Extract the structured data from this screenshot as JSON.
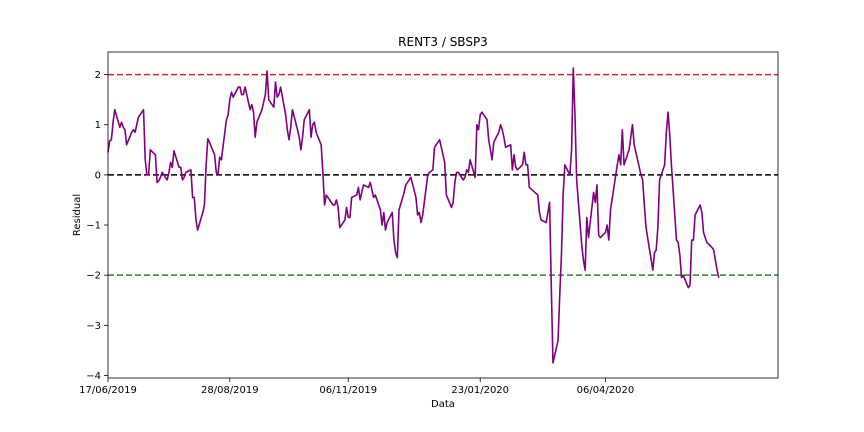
{
  "chart_data": {
    "type": "line",
    "title": "RENT3 / SBSP3",
    "xlabel": "Data",
    "ylabel": "Residual",
    "x_start": "2019-06-17",
    "x_end": "2020-07-17",
    "ylim": [
      -4.05,
      2.45
    ],
    "yticks": [
      -4,
      -3,
      -2,
      -1,
      0,
      1,
      2
    ],
    "xticks": [
      {
        "date": "2019-06-17",
        "label": "17/06/2019"
      },
      {
        "date": "2019-08-28",
        "label": "28/08/2019"
      },
      {
        "date": "2019-11-06",
        "label": "06/11/2019"
      },
      {
        "date": "2020-01-23",
        "label": "23/01/2020"
      },
      {
        "date": "2020-04-06",
        "label": "06/04/2020"
      }
    ],
    "grid": false,
    "reference_lines": [
      {
        "y": 2,
        "color": "#d62728",
        "style": "dashed"
      },
      {
        "y": 0,
        "color": "#000000",
        "style": "dashed"
      },
      {
        "y": -2,
        "color": "#2e7d32",
        "style": "dashed"
      }
    ],
    "series": [
      {
        "color": "#800080",
        "points": [
          [
            "2019-06-17",
            0.45
          ],
          [
            "2019-06-18",
            0.68
          ],
          [
            "2019-06-19",
            0.7
          ],
          [
            "2019-06-20",
            1.05
          ],
          [
            "2019-06-21",
            1.3
          ],
          [
            "2019-06-24",
            0.95
          ],
          [
            "2019-06-25",
            1.05
          ],
          [
            "2019-06-26",
            0.95
          ],
          [
            "2019-06-27",
            0.9
          ],
          [
            "2019-06-28",
            0.6
          ],
          [
            "2019-07-01",
            0.85
          ],
          [
            "2019-07-02",
            0.9
          ],
          [
            "2019-07-03",
            0.85
          ],
          [
            "2019-07-04",
            1.0
          ],
          [
            "2019-07-05",
            1.15
          ],
          [
            "2019-07-08",
            1.3
          ],
          [
            "2019-07-09",
            0.3
          ],
          [
            "2019-07-10",
            0.0
          ],
          [
            "2019-07-11",
            0.0
          ],
          [
            "2019-07-12",
            0.5
          ],
          [
            "2019-07-15",
            0.4
          ],
          [
            "2019-07-16",
            -0.15
          ],
          [
            "2019-07-17",
            -0.12
          ],
          [
            "2019-07-18",
            -0.05
          ],
          [
            "2019-07-19",
            0.05
          ],
          [
            "2019-07-22",
            -0.1
          ],
          [
            "2019-07-23",
            0.05
          ],
          [
            "2019-07-24",
            0.25
          ],
          [
            "2019-07-25",
            0.15
          ],
          [
            "2019-07-26",
            0.48
          ],
          [
            "2019-07-29",
            0.15
          ],
          [
            "2019-07-30",
            0.15
          ],
          [
            "2019-07-31",
            -0.1
          ],
          [
            "2019-08-01",
            -0.05
          ],
          [
            "2019-08-02",
            0.05
          ],
          [
            "2019-08-05",
            0.1
          ],
          [
            "2019-08-06",
            -0.45
          ],
          [
            "2019-08-07",
            -0.45
          ],
          [
            "2019-08-08",
            -0.9
          ],
          [
            "2019-08-09",
            -1.1
          ],
          [
            "2019-08-12",
            -0.75
          ],
          [
            "2019-08-13",
            -0.6
          ],
          [
            "2019-08-14",
            0.2
          ],
          [
            "2019-08-15",
            0.72
          ],
          [
            "2019-08-16",
            0.65
          ],
          [
            "2019-08-19",
            0.4
          ],
          [
            "2019-08-20",
            0.05
          ],
          [
            "2019-08-21",
            0.0
          ],
          [
            "2019-08-22",
            0.35
          ],
          [
            "2019-08-23",
            0.3
          ],
          [
            "2019-08-26",
            1.1
          ],
          [
            "2019-08-27",
            1.2
          ],
          [
            "2019-08-28",
            1.5
          ],
          [
            "2019-08-29",
            1.65
          ],
          [
            "2019-08-30",
            1.55
          ],
          [
            "2019-09-02",
            1.75
          ],
          [
            "2019-09-03",
            1.75
          ],
          [
            "2019-09-04",
            1.6
          ],
          [
            "2019-09-05",
            1.6
          ],
          [
            "2019-09-06",
            1.75
          ],
          [
            "2019-09-09",
            1.3
          ],
          [
            "2019-09-10",
            1.4
          ],
          [
            "2019-09-11",
            1.25
          ],
          [
            "2019-09-12",
            0.75
          ],
          [
            "2019-09-13",
            1.05
          ],
          [
            "2019-09-16",
            1.3
          ],
          [
            "2019-09-17",
            1.45
          ],
          [
            "2019-09-18",
            1.6
          ],
          [
            "2019-09-19",
            2.07
          ],
          [
            "2019-09-20",
            1.5
          ],
          [
            "2019-09-23",
            1.35
          ],
          [
            "2019-09-24",
            1.85
          ],
          [
            "2019-09-25",
            1.55
          ],
          [
            "2019-09-26",
            1.6
          ],
          [
            "2019-09-27",
            1.75
          ],
          [
            "2019-09-30",
            1.2
          ],
          [
            "2019-10-01",
            0.9
          ],
          [
            "2019-10-02",
            0.7
          ],
          [
            "2019-10-03",
            0.95
          ],
          [
            "2019-10-04",
            1.3
          ],
          [
            "2019-10-07",
            0.9
          ],
          [
            "2019-10-08",
            0.75
          ],
          [
            "2019-10-09",
            0.5
          ],
          [
            "2019-10-10",
            0.75
          ],
          [
            "2019-10-11",
            1.1
          ],
          [
            "2019-10-14",
            1.3
          ],
          [
            "2019-10-15",
            0.75
          ],
          [
            "2019-10-16",
            1.0
          ],
          [
            "2019-10-17",
            1.05
          ],
          [
            "2019-10-18",
            0.85
          ],
          [
            "2019-10-21",
            0.6
          ],
          [
            "2019-10-22",
            0.05
          ],
          [
            "2019-10-23",
            -0.6
          ],
          [
            "2019-10-24",
            -0.4
          ],
          [
            "2019-10-25",
            -0.45
          ],
          [
            "2019-10-28",
            -0.6
          ],
          [
            "2019-10-29",
            -0.6
          ],
          [
            "2019-10-30",
            -0.5
          ],
          [
            "2019-10-31",
            -0.65
          ],
          [
            "2019-11-01",
            -1.05
          ],
          [
            "2019-11-04",
            -0.9
          ],
          [
            "2019-11-05",
            -0.65
          ],
          [
            "2019-11-06",
            -0.85
          ],
          [
            "2019-11-07",
            -0.85
          ],
          [
            "2019-11-08",
            -0.45
          ],
          [
            "2019-11-11",
            -0.4
          ],
          [
            "2019-11-12",
            -0.25
          ],
          [
            "2019-11-13",
            -0.5
          ],
          [
            "2019-11-14",
            -0.35
          ],
          [
            "2019-11-15",
            -0.2
          ],
          [
            "2019-11-18",
            -0.25
          ],
          [
            "2019-11-19",
            -0.15
          ],
          [
            "2019-11-20",
            -0.3
          ],
          [
            "2019-11-21",
            -0.45
          ],
          [
            "2019-11-22",
            -0.4
          ],
          [
            "2019-11-25",
            -0.7
          ],
          [
            "2019-11-26",
            -1.0
          ],
          [
            "2019-11-27",
            -0.75
          ],
          [
            "2019-11-28",
            -1.1
          ],
          [
            "2019-11-29",
            -0.95
          ],
          [
            "2019-12-02",
            -0.75
          ],
          [
            "2019-12-03",
            -1.3
          ],
          [
            "2019-12-04",
            -1.55
          ],
          [
            "2019-12-05",
            -1.65
          ],
          [
            "2019-12-06",
            -0.7
          ],
          [
            "2019-12-09",
            -0.35
          ],
          [
            "2019-12-10",
            -0.2
          ],
          [
            "2019-12-11",
            -0.15
          ],
          [
            "2019-12-12",
            -0.1
          ],
          [
            "2019-12-13",
            -0.05
          ],
          [
            "2019-12-16",
            -0.45
          ],
          [
            "2019-12-17",
            -0.8
          ],
          [
            "2019-12-18",
            -0.75
          ],
          [
            "2019-12-19",
            -0.95
          ],
          [
            "2019-12-20",
            -0.8
          ],
          [
            "2019-12-23",
            0.0
          ],
          [
            "2019-12-24",
            0.05
          ],
          [
            "2019-12-26",
            0.1
          ],
          [
            "2019-12-27",
            0.55
          ],
          [
            "2019-12-30",
            0.7
          ],
          [
            "2019-12-31",
            0.55
          ],
          [
            "2020-01-02",
            0.25
          ],
          [
            "2020-01-03",
            -0.4
          ],
          [
            "2020-01-06",
            -0.65
          ],
          [
            "2020-01-07",
            -0.55
          ],
          [
            "2020-01-08",
            -0.15
          ],
          [
            "2020-01-09",
            0.05
          ],
          [
            "2020-01-10",
            0.05
          ],
          [
            "2020-01-13",
            -0.1
          ],
          [
            "2020-01-14",
            -0.05
          ],
          [
            "2020-01-15",
            0.1
          ],
          [
            "2020-01-16",
            0.05
          ],
          [
            "2020-01-17",
            0.3
          ],
          [
            "2020-01-20",
            -0.05
          ],
          [
            "2020-01-21",
            1.0
          ],
          [
            "2020-01-22",
            0.9
          ],
          [
            "2020-01-23",
            1.2
          ],
          [
            "2020-01-24",
            1.25
          ],
          [
            "2020-01-27",
            1.1
          ],
          [
            "2020-01-28",
            0.7
          ],
          [
            "2020-01-29",
            0.5
          ],
          [
            "2020-01-30",
            0.3
          ],
          [
            "2020-01-31",
            0.65
          ],
          [
            "2020-02-03",
            0.85
          ],
          [
            "2020-02-04",
            1.0
          ],
          [
            "2020-02-05",
            0.9
          ],
          [
            "2020-02-06",
            0.75
          ],
          [
            "2020-02-07",
            0.55
          ],
          [
            "2020-02-10",
            0.6
          ],
          [
            "2020-02-11",
            0.1
          ],
          [
            "2020-02-12",
            0.4
          ],
          [
            "2020-02-13",
            0.15
          ],
          [
            "2020-02-14",
            0.1
          ],
          [
            "2020-02-17",
            0.2
          ],
          [
            "2020-02-18",
            0.45
          ],
          [
            "2020-02-19",
            0.2
          ],
          [
            "2020-02-20",
            0.2
          ],
          [
            "2020-02-21",
            -0.25
          ],
          [
            "2020-02-26",
            -0.4
          ],
          [
            "2020-02-27",
            -0.75
          ],
          [
            "2020-02-28",
            -0.9
          ],
          [
            "2020-03-02",
            -0.95
          ],
          [
            "2020-03-03",
            -0.75
          ],
          [
            "2020-03-04",
            -0.55
          ],
          [
            "2020-03-05",
            -2.2
          ],
          [
            "2020-03-06",
            -3.75
          ],
          [
            "2020-03-09",
            -3.3
          ],
          [
            "2020-03-10",
            -2.4
          ],
          [
            "2020-03-11",
            -1.6
          ],
          [
            "2020-03-12",
            -0.4
          ],
          [
            "2020-03-13",
            0.2
          ],
          [
            "2020-03-16",
            0.0
          ],
          [
            "2020-03-17",
            0.5
          ],
          [
            "2020-03-18",
            2.13
          ],
          [
            "2020-03-19",
            1.2
          ],
          [
            "2020-03-20",
            -0.1
          ],
          [
            "2020-03-23",
            -1.4
          ],
          [
            "2020-03-24",
            -1.7
          ],
          [
            "2020-03-25",
            -1.9
          ],
          [
            "2020-03-26",
            -0.85
          ],
          [
            "2020-03-27",
            -1.25
          ],
          [
            "2020-03-30",
            -0.35
          ],
          [
            "2020-03-31",
            -0.55
          ],
          [
            "2020-04-01",
            -0.2
          ],
          [
            "2020-04-02",
            -1.2
          ],
          [
            "2020-04-03",
            -1.25
          ],
          [
            "2020-04-06",
            -1.15
          ],
          [
            "2020-04-07",
            -1.0
          ],
          [
            "2020-04-08",
            -1.3
          ],
          [
            "2020-04-09",
            -0.7
          ],
          [
            "2020-04-13",
            0.2
          ],
          [
            "2020-04-14",
            0.4
          ],
          [
            "2020-04-15",
            0.2
          ],
          [
            "2020-04-16",
            0.9
          ],
          [
            "2020-04-17",
            0.2
          ],
          [
            "2020-04-20",
            0.5
          ],
          [
            "2020-04-22",
            1.0
          ],
          [
            "2020-04-23",
            0.6
          ],
          [
            "2020-04-24",
            0.45
          ],
          [
            "2020-04-27",
            0.0
          ],
          [
            "2020-04-28",
            -0.1
          ],
          [
            "2020-04-29",
            -0.6
          ],
          [
            "2020-04-30",
            -1.05
          ],
          [
            "2020-05-04",
            -1.9
          ],
          [
            "2020-05-05",
            -1.55
          ],
          [
            "2020-05-06",
            -1.5
          ],
          [
            "2020-05-07",
            -1.05
          ],
          [
            "2020-05-08",
            -0.1
          ],
          [
            "2020-05-11",
            0.2
          ],
          [
            "2020-05-12",
            0.85
          ],
          [
            "2020-05-13",
            1.25
          ],
          [
            "2020-05-14",
            0.8
          ],
          [
            "2020-05-15",
            0.2
          ],
          [
            "2020-05-18",
            -1.3
          ],
          [
            "2020-05-19",
            -1.35
          ],
          [
            "2020-05-20",
            -1.6
          ],
          [
            "2020-05-21",
            -2.05
          ],
          [
            "2020-05-22",
            -2.0
          ],
          [
            "2020-05-25",
            -2.25
          ],
          [
            "2020-05-26",
            -2.2
          ],
          [
            "2020-05-27",
            -1.3
          ],
          [
            "2020-05-28",
            -1.3
          ],
          [
            "2020-05-29",
            -0.8
          ],
          [
            "2020-06-01",
            -0.6
          ],
          [
            "2020-06-02",
            -0.75
          ],
          [
            "2020-06-03",
            -1.15
          ],
          [
            "2020-06-04",
            -1.25
          ],
          [
            "2020-06-05",
            -1.35
          ],
          [
            "2020-06-08",
            -1.45
          ],
          [
            "2020-06-09",
            -1.5
          ],
          [
            "2020-06-10",
            -1.7
          ],
          [
            "2020-06-11",
            -1.9
          ],
          [
            "2020-06-12",
            -2.05
          ]
        ]
      }
    ]
  }
}
